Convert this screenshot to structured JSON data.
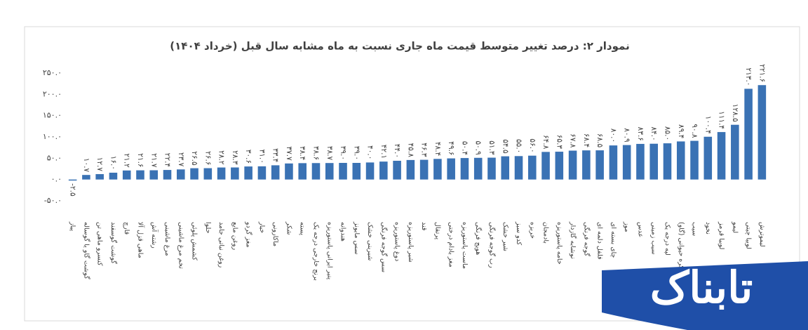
{
  "chart_data": {
    "type": "bar",
    "title": "نمودار ۲: درصد تغییر متوسط قیمت ماه جاری نسبت به ماه مشابه سال قبل (خرداد ۱۴۰۴)",
    "categories": [
      "پیاز",
      "گوشت گاو یا گوساله",
      "کنسرو ماهی تن",
      "گوشت گوسفند",
      "قارچ",
      "ماهی قزل آلا",
      "رشته آش",
      "مرغ ماشینی",
      "تخم مرغ ماشینی",
      "کشمش پلوئی",
      "حلوا",
      "روغن نباتی جامد",
      "روغن مایع",
      "مغز گردو",
      "خیار",
      "ماکارونی",
      "شکر",
      "پسته",
      "برنج خارجی درجه یک",
      "پنیر ایرانی پاستوریزه",
      "هندوانه",
      "سس مایونز",
      "شیرینی خشک",
      "سس گوجه فرنگی",
      "دوغ پاستوریزه",
      "شیر پاستوریزه",
      "قند",
      "پرتقال",
      "مغز بادام درختی",
      "ماست پاستوریزه",
      "هویج فرنگی",
      "رب گوجه فرنگی",
      "شیر خشک",
      "کدو سبز",
      "خربزه",
      "بادمجان",
      "خامه پاستوریزه",
      "نوشابه گازدار",
      "گوجه فرنگی",
      "فلفل دلمه ای",
      "چای بسته ای",
      "موز",
      "عدس",
      "سیب زمینی",
      "لپه درجه یک",
      "کره حیوانی (گاو)",
      "سیب",
      "نخود",
      "لوبیا قرمز",
      "لیمو",
      "لوبیا چیتی",
      "لیموترش"
    ],
    "values": [
      -2.5,
      10.7,
      12.7,
      16.0,
      21.2,
      21.6,
      21.7,
      22.4,
      23.7,
      26.5,
      26.6,
      28.2,
      28.3,
      30.6,
      31.0,
      33.4,
      37.7,
      38.4,
      38.6,
      38.7,
      39.0,
      39.0,
      40.0,
      42.1,
      44.0,
      45.8,
      46.3,
      48.4,
      49.6,
      50.4,
      50.9,
      51.3,
      54.5,
      55.0,
      56.0,
      64.8,
      65.3,
      67.8,
      68.4,
      68.5,
      80.0,
      80.9,
      83.6,
      84.0,
      85.0,
      89.4,
      90.8,
      100.4,
      111.4,
      128.5,
      213.0,
      221.6
    ],
    "value_labels": [
      "-۲.۵",
      "۱۰.۷",
      "۱۲.۷",
      "۱۶.۰",
      "۲۱.۲",
      "۲۱.۶",
      "۲۱.۷",
      "۲۲.۴",
      "۲۳.۷",
      "۲۶.۵",
      "۲۶.۶",
      "۲۸.۲",
      "۲۸.۳",
      "۳۰.۶",
      "۳۱.۰",
      "۳۳.۴",
      "۳۷.۷",
      "۳۸.۴",
      "۳۸.۶",
      "۳۸.۷",
      "۳۹.۰",
      "۳۹.۰",
      "۴۰.۰",
      "۴۲.۱",
      "۴۴.۰",
      "۴۵.۸",
      "۴۶.۳",
      "۴۸.۴",
      "۴۹.۶",
      "۵۰.۴",
      "۵۰.۹",
      "۵۱.۳",
      "۵۴.۵",
      "۵۵.۰",
      "۵۶.۰",
      "۶۴.۸",
      "۶۵.۳",
      "۶۷.۸",
      "۶۸.۴",
      "۶۸.۵",
      "۸۰.۰",
      "۸۰.۹",
      "۸۳.۶",
      "۸۴.۰",
      "۸۵.۰",
      "۸۹.۴",
      "۹۰.۸",
      "۱۰۰.۴",
      "۱۱۱.۴",
      "۱۲۸.۵",
      "۲۱۳.۰",
      "۲۲۱.۶"
    ],
    "color": "#3a72b4",
    "ylim": [
      -50,
      250
    ],
    "yticks": [
      {
        "value": -50,
        "label": "-۵۰.۰"
      },
      {
        "value": 0,
        "label": "۰.۰"
      },
      {
        "value": 50,
        "label": "۵۰.۰"
      },
      {
        "value": 100,
        "label": "۱۰۰.۰"
      },
      {
        "value": 150,
        "label": "۱۵۰.۰"
      },
      {
        "value": 200,
        "label": "۲۰۰.۰"
      },
      {
        "value": 250,
        "label": "۲۵۰.۰"
      }
    ],
    "grid": false
  },
  "watermark": "تابناک"
}
